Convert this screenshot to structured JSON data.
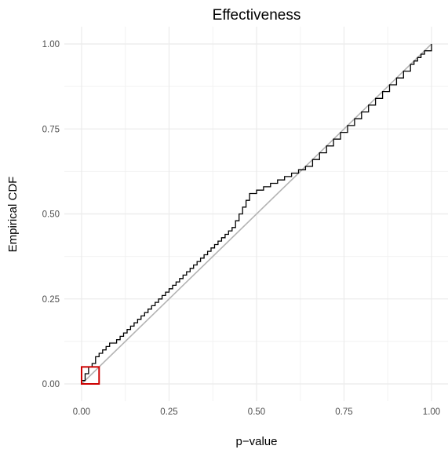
{
  "chart_data": {
    "type": "line",
    "title": "Effectiveness",
    "xlabel": "p−value",
    "ylabel": "Empirical CDF",
    "xlim": [
      0,
      1
    ],
    "ylim": [
      0,
      1
    ],
    "x_ticks": [
      "0.00",
      "0.25",
      "0.50",
      "0.75",
      "1.00"
    ],
    "y_ticks": [
      "0.00",
      "0.25",
      "0.50",
      "0.75",
      "1.00"
    ],
    "grid": true,
    "legend": "none",
    "series": [
      {
        "kind": "ecdf-step",
        "color": "#000000",
        "x": [
          0.0,
          0.01,
          0.02,
          0.03,
          0.04,
          0.05,
          0.06,
          0.07,
          0.08,
          0.1,
          0.11,
          0.12,
          0.13,
          0.14,
          0.15,
          0.16,
          0.17,
          0.18,
          0.19,
          0.2,
          0.21,
          0.22,
          0.23,
          0.24,
          0.25,
          0.26,
          0.27,
          0.28,
          0.29,
          0.3,
          0.31,
          0.32,
          0.33,
          0.34,
          0.35,
          0.36,
          0.37,
          0.38,
          0.39,
          0.4,
          0.41,
          0.42,
          0.43,
          0.44,
          0.45,
          0.46,
          0.47,
          0.48,
          0.5,
          0.52,
          0.54,
          0.56,
          0.58,
          0.6,
          0.62,
          0.64,
          0.66,
          0.68,
          0.7,
          0.72,
          0.74,
          0.76,
          0.78,
          0.8,
          0.82,
          0.84,
          0.86,
          0.88,
          0.9,
          0.92,
          0.94,
          0.95,
          0.96,
          0.97,
          0.98,
          1.0
        ],
        "y": [
          0.01,
          0.03,
          0.05,
          0.06,
          0.08,
          0.09,
          0.1,
          0.11,
          0.12,
          0.13,
          0.14,
          0.15,
          0.16,
          0.17,
          0.18,
          0.19,
          0.2,
          0.21,
          0.22,
          0.23,
          0.24,
          0.25,
          0.26,
          0.27,
          0.28,
          0.29,
          0.3,
          0.31,
          0.32,
          0.33,
          0.34,
          0.35,
          0.36,
          0.37,
          0.38,
          0.39,
          0.4,
          0.41,
          0.42,
          0.43,
          0.44,
          0.45,
          0.46,
          0.48,
          0.5,
          0.52,
          0.54,
          0.56,
          0.57,
          0.58,
          0.59,
          0.6,
          0.61,
          0.62,
          0.63,
          0.64,
          0.66,
          0.68,
          0.7,
          0.72,
          0.74,
          0.76,
          0.78,
          0.8,
          0.82,
          0.84,
          0.86,
          0.88,
          0.9,
          0.92,
          0.94,
          0.95,
          0.96,
          0.97,
          0.98,
          1.0
        ]
      },
      {
        "kind": "reference-line",
        "color": "#b3b3b3",
        "x": [
          0,
          1
        ],
        "y": [
          0,
          1
        ]
      }
    ],
    "highlight_box": {
      "color": "#cc0000",
      "x": [
        0,
        0.05
      ],
      "y": [
        0,
        0.05
      ]
    }
  }
}
